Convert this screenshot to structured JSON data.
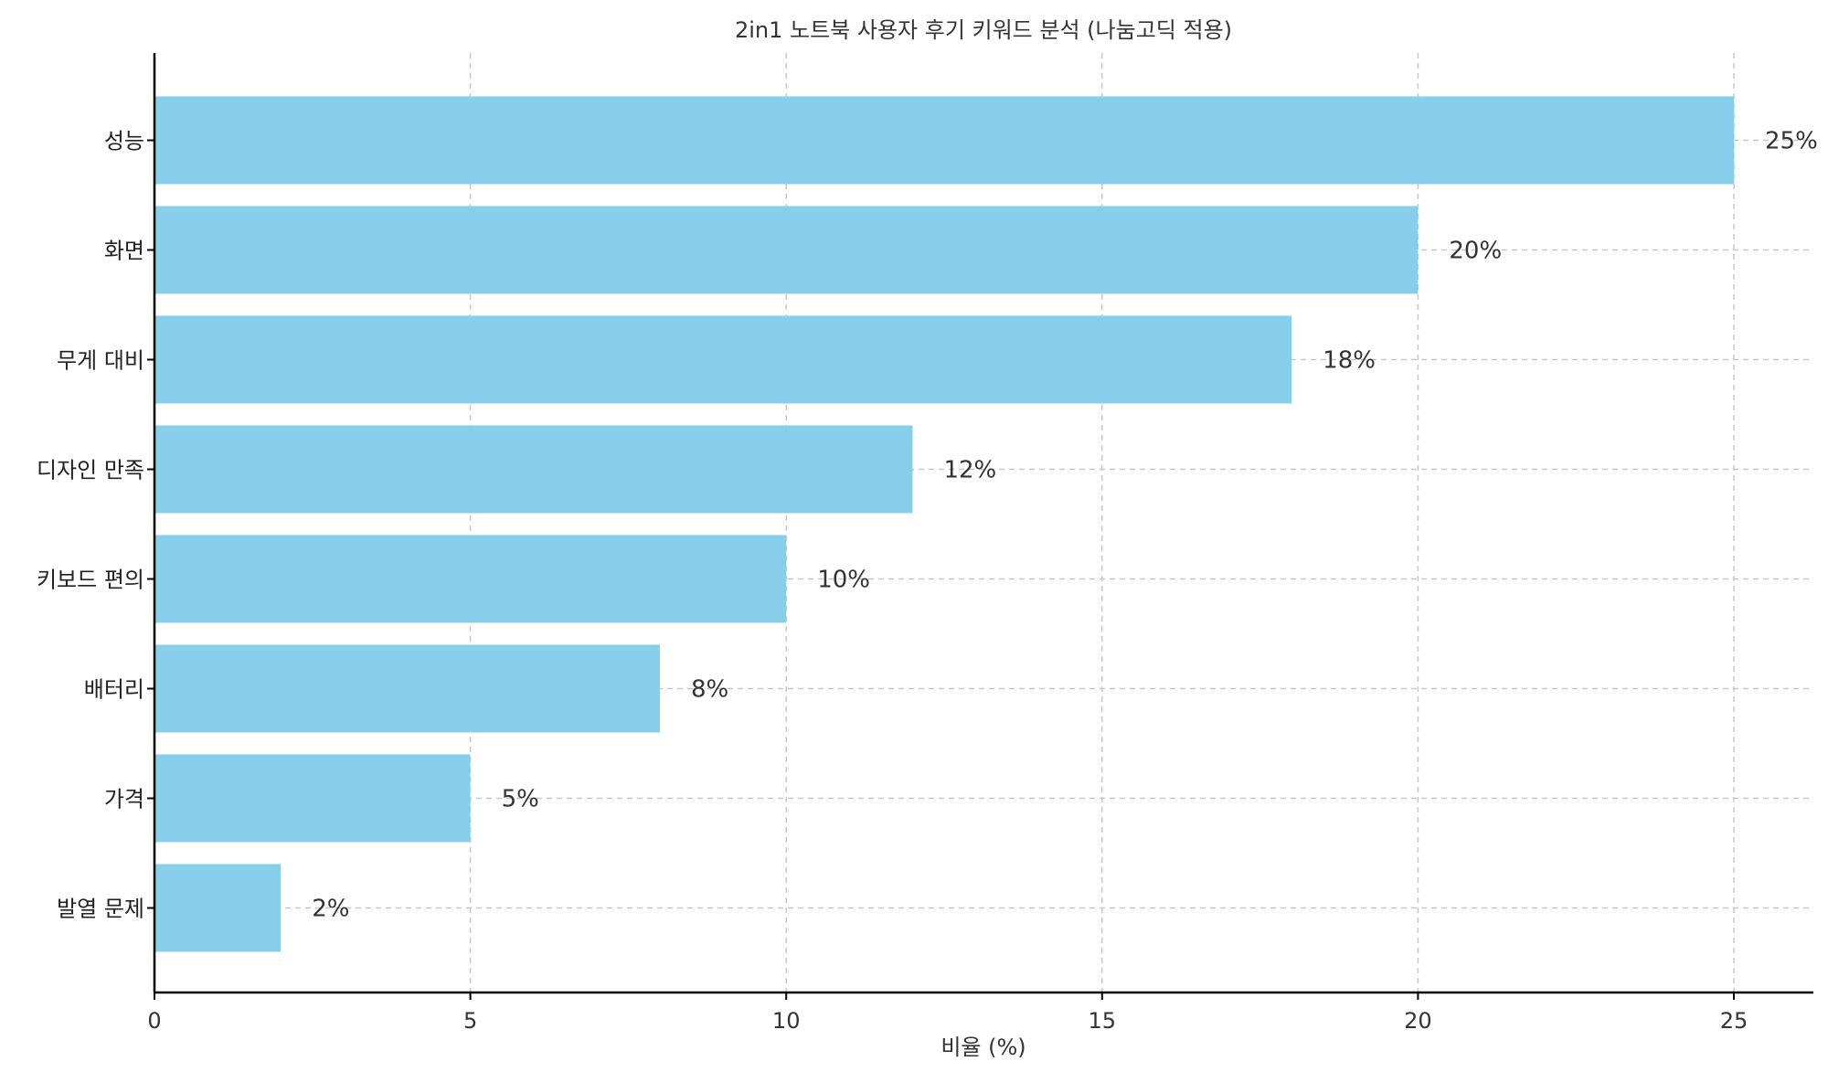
{
  "chart_data": {
    "type": "bar",
    "orientation": "horizontal",
    "title": "2in1 노트북 사용자 후기 키워드 분석 (나눔고딕 적용)",
    "xlabel": "비율 (%)",
    "ylabel": "",
    "categories": [
      "성능",
      "화면",
      "무게 대비",
      "디자인 만족",
      "키보드 편의",
      "배터리",
      "가격",
      "발열 문제"
    ],
    "values": [
      25,
      20,
      18,
      12,
      10,
      8,
      5,
      2
    ],
    "data_labels": [
      "25%",
      "20%",
      "18%",
      "12%",
      "10%",
      "8%",
      "5%",
      "2%"
    ],
    "xlim": [
      0,
      26.25
    ],
    "xticks": [
      0,
      5,
      10,
      15,
      20,
      25
    ],
    "grid": true,
    "bar_color": "#87ceeb"
  }
}
